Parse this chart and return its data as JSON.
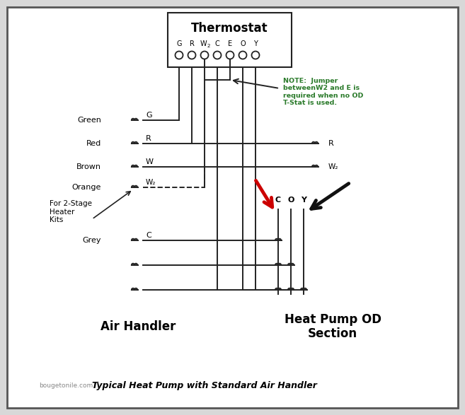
{
  "bg_color": "#d8d8d8",
  "inner_bg": "#ffffff",
  "border_color": "#444444",
  "title": "Thermostat",
  "thermostat_labels": [
    "G",
    "R",
    "W",
    "C",
    "E",
    "O",
    "Y"
  ],
  "note_text": "NOTE:  Jumper\nbetweenW2 and E is\nrequired when no OD\nT-Stat is used.",
  "note_color": "#2a7a2a",
  "stage_text": "For 2-Stage\nHeater\nKits",
  "air_handler_label": "Air Handler",
  "heat_pump_label": "Heat Pump OD\nSection",
  "bottom_site": "bougetonile.com",
  "bottom_label": "Typical Heat Pump with Standard Air Handler",
  "coy_labels": [
    "C",
    "O",
    "Y"
  ],
  "right_labels": [
    "R",
    "W₂"
  ],
  "left_colors": [
    "Green",
    "Red",
    "Brown",
    "Orange"
  ],
  "left_wires": [
    "G",
    "R",
    "W",
    "W₂"
  ],
  "grey_label": "Grey",
  "grey_wire": "C",
  "arrow_red": "#cc0000",
  "arrow_black": "#111111",
  "line_color": "#222222",
  "lw": 1.4
}
